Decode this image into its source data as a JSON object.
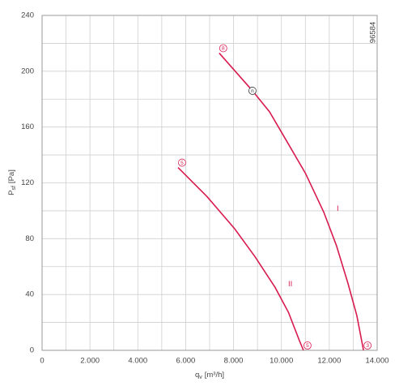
{
  "chart_data": {
    "type": "line",
    "code": "96584",
    "xlabel": {
      "symbol": "q",
      "subscript": "v",
      "unit": "[m³/h]"
    },
    "ylabel": {
      "symbol": "P",
      "subscript": "sf",
      "unit": "[Pa]"
    },
    "xlim": [
      0,
      14000
    ],
    "ylim": [
      0,
      240
    ],
    "xticks": [
      0,
      {
        "value": 2000,
        "label": "2.000"
      },
      {
        "value": 4000,
        "label": "4.000"
      },
      {
        "value": 6000,
        "label": "6.000"
      },
      {
        "value": 8000,
        "label": "8.000"
      },
      {
        "value": 10000,
        "label": "10.000"
      },
      {
        "value": 12000,
        "label": "12.000"
      },
      {
        "value": 14000,
        "label": "14.000"
      }
    ],
    "yticks": [
      0,
      40,
      80,
      120,
      160,
      200,
      240
    ],
    "x_minor_ticks": [
      1000,
      3000,
      5000,
      7000,
      9000,
      11000,
      13000
    ],
    "y_minor_ticks": [
      20,
      60,
      100,
      140,
      180,
      220
    ],
    "grid": true,
    "series": [
      {
        "name": "I",
        "color": "#d81b4f",
        "x": [
          7400,
          8790,
          9500,
          10150,
          11000,
          11770,
          12300,
          12780,
          13150,
          13430
        ],
        "values": [
          213,
          186,
          171,
          152,
          127,
          99,
          75,
          48,
          25,
          0
        ],
        "marker_labels": [
          "8",
          "n",
          null,
          null,
          null,
          null,
          null,
          null,
          null,
          "3"
        ]
      },
      {
        "name": "II",
        "color": "#d81b4f",
        "x": [
          5680,
          6900,
          8050,
          8900,
          9740,
          10300,
          10750,
          10920
        ],
        "values": [
          131,
          110,
          87,
          67,
          45,
          27,
          7,
          0
        ],
        "marker_labels": [
          "5",
          null,
          null,
          null,
          null,
          null,
          null,
          "5"
        ]
      }
    ]
  }
}
